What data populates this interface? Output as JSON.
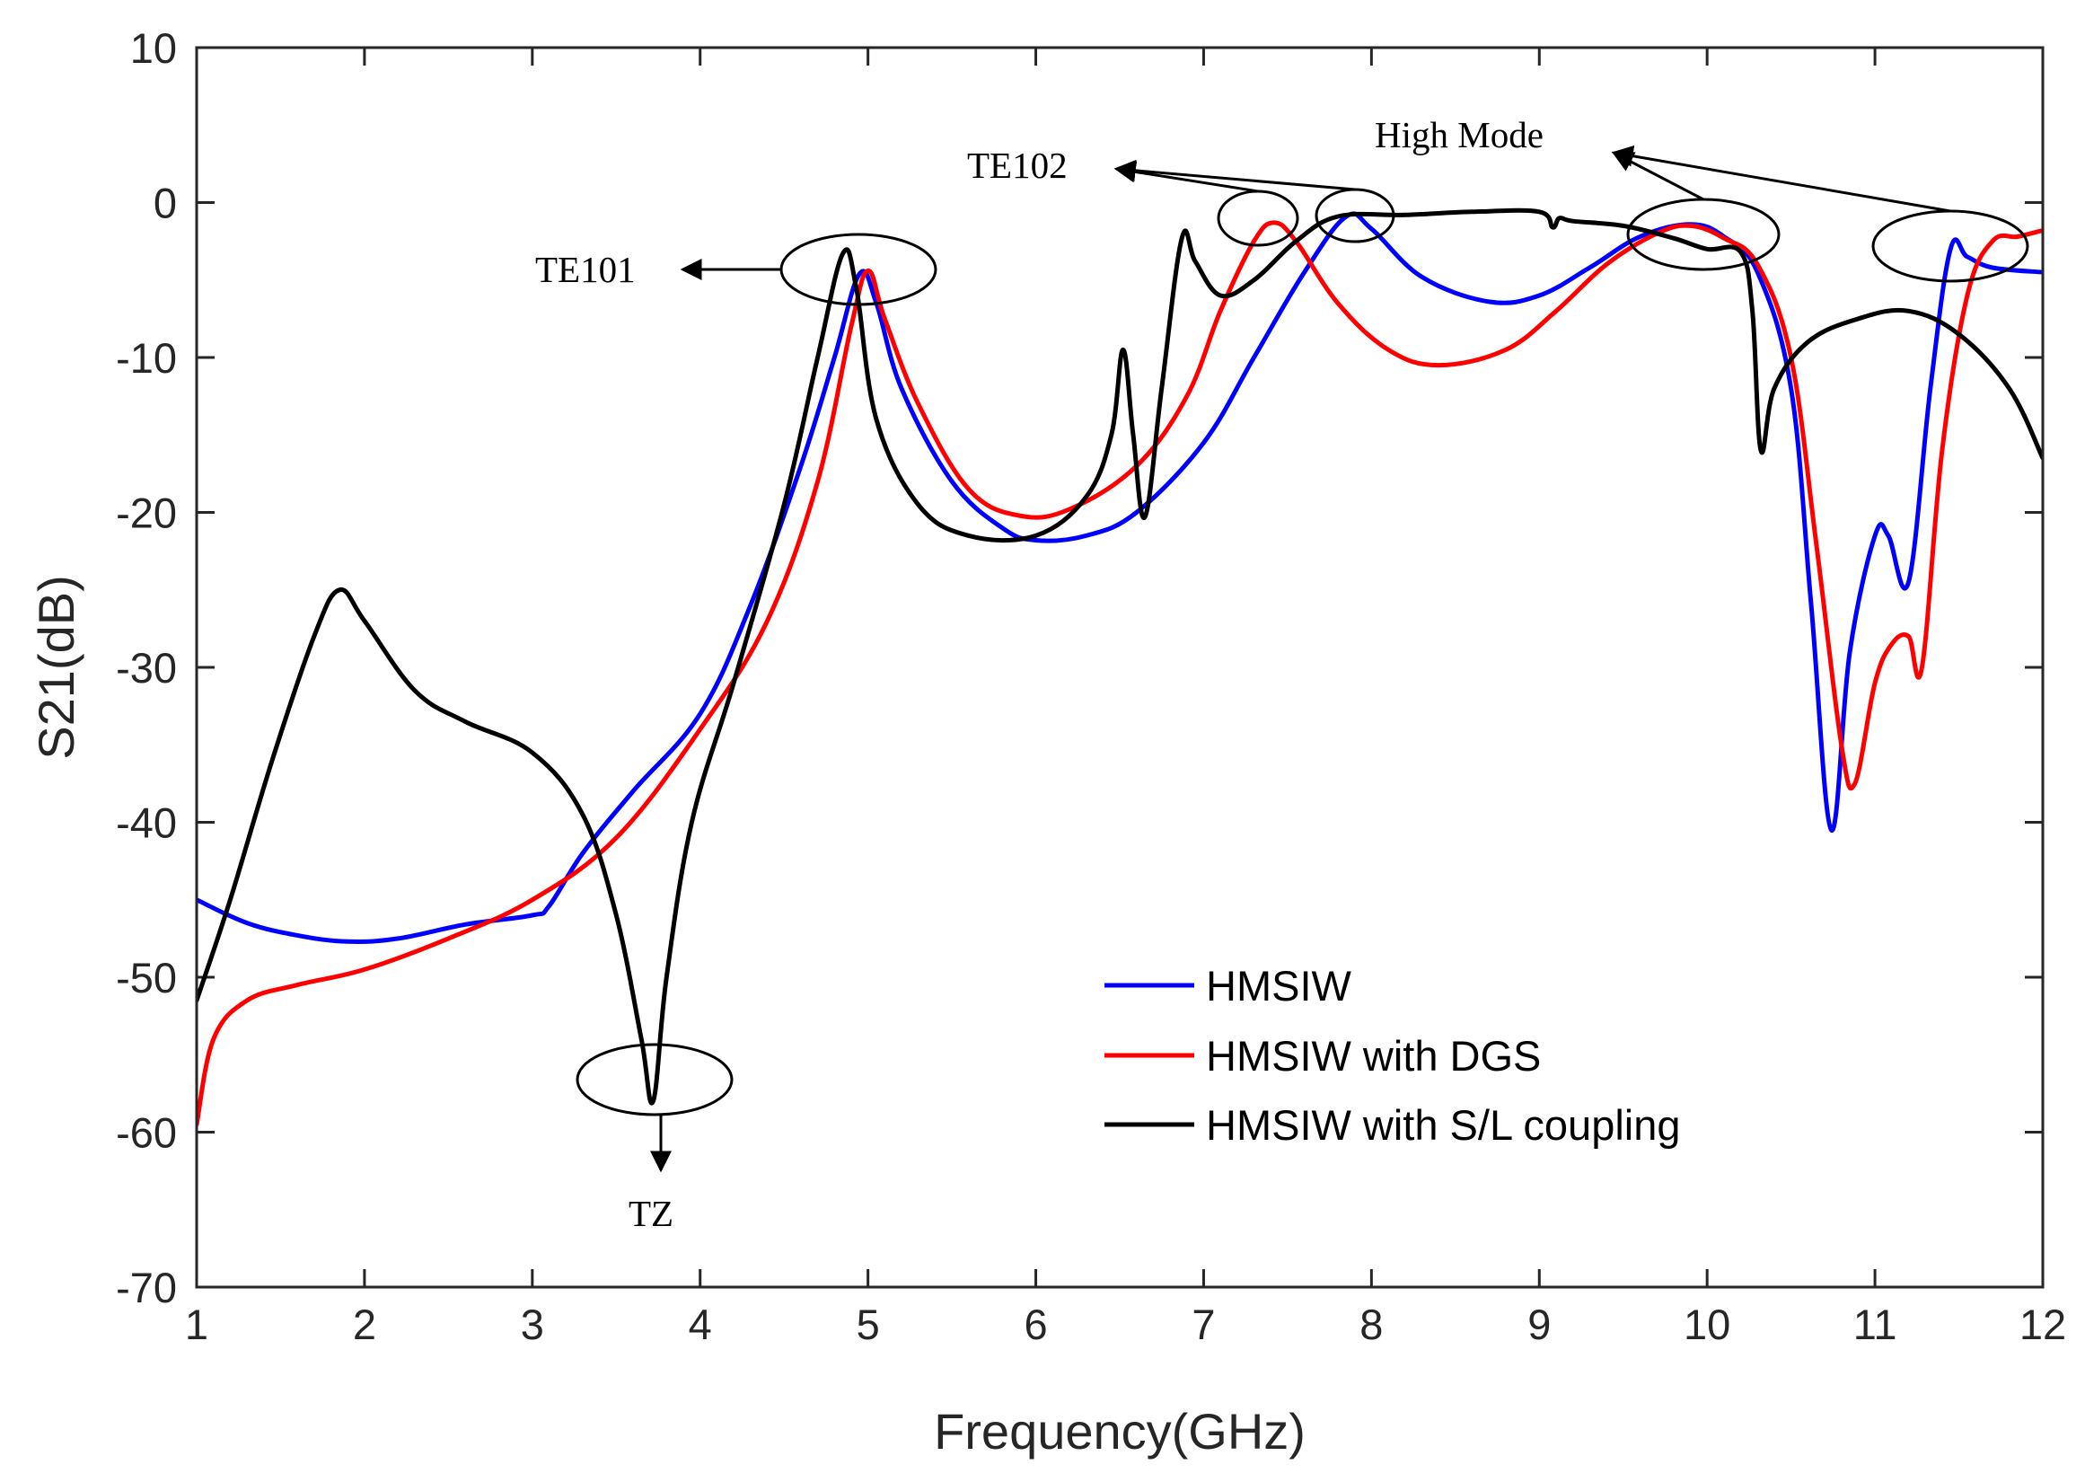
{
  "chart_data": {
    "type": "line",
    "title": "",
    "xlabel": "Frequency(GHz)",
    "ylabel": "S21(dB)",
    "xlim": [
      1,
      12
    ],
    "ylim": [
      -70,
      10
    ],
    "xticks": [
      1,
      2,
      3,
      4,
      5,
      6,
      7,
      8,
      9,
      10,
      11,
      12
    ],
    "yticks": [
      10,
      0,
      -10,
      -20,
      -30,
      -40,
      -50,
      -60,
      -70
    ],
    "grid": false,
    "legend_position": "lower-right",
    "series": [
      {
        "name": "HMSIW",
        "color": "#0000ff",
        "x": [
          1,
          1.3,
          1.6,
          1.9,
          2.2,
          2.6,
          3.0,
          3.1,
          3.3,
          3.6,
          4.0,
          4.3,
          4.6,
          4.8,
          4.95,
          5.05,
          5.2,
          5.5,
          5.8,
          6.0,
          6.3,
          6.6,
          7.0,
          7.3,
          7.6,
          7.85,
          8.0,
          8.3,
          8.7,
          9.0,
          9.3,
          9.6,
          9.9,
          10.1,
          10.3,
          10.5,
          10.62,
          10.74,
          10.85,
          11.0,
          11.08,
          11.2,
          11.33,
          11.45,
          11.55,
          11.7,
          12.0
        ],
        "y": [
          -45,
          -46.5,
          -47.3,
          -47.7,
          -47.5,
          -46.6,
          -46,
          -45.4,
          -42,
          -38,
          -33,
          -26,
          -17,
          -10,
          -4.6,
          -6.5,
          -12,
          -18,
          -21,
          -21.8,
          -21.5,
          -20,
          -15.5,
          -10,
          -4.5,
          -0.9,
          -1.7,
          -4.8,
          -6.4,
          -6,
          -4.2,
          -2.2,
          -1.4,
          -2.2,
          -4.5,
          -12,
          -26,
          -40.5,
          -29,
          -21.5,
          -21.5,
          -24.5,
          -12,
          -3,
          -3.5,
          -4.2,
          -4.5
        ]
      },
      {
        "name": "HMSIW with DGS",
        "color": "#ff0000",
        "x": [
          1,
          1.1,
          1.3,
          1.6,
          2.0,
          2.5,
          3.0,
          3.5,
          4.0,
          4.4,
          4.7,
          4.9,
          5.0,
          5.1,
          5.3,
          5.6,
          5.9,
          6.2,
          6.6,
          6.9,
          7.1,
          7.3,
          7.42,
          7.55,
          7.8,
          8.1,
          8.4,
          8.8,
          9.1,
          9.4,
          9.7,
          9.9,
          10.1,
          10.3,
          10.5,
          10.65,
          10.8,
          10.88,
          11.0,
          11.1,
          11.2,
          11.28,
          11.4,
          11.55,
          11.7,
          11.85,
          12.0
        ],
        "y": [
          -59.5,
          -54,
          -51.5,
          -50.5,
          -49.5,
          -47.5,
          -45,
          -41,
          -34,
          -27,
          -18,
          -8,
          -4.4,
          -7.5,
          -13,
          -18.5,
          -20.2,
          -19.8,
          -17,
          -12.5,
          -7,
          -2.5,
          -1.3,
          -2.5,
          -6.5,
          -9.5,
          -10.5,
          -9.5,
          -7,
          -4,
          -2,
          -1.5,
          -2.3,
          -4,
          -10,
          -22,
          -35,
          -37.5,
          -31,
          -28.5,
          -28,
          -30,
          -16,
          -6,
          -2.5,
          -2.2,
          -1.8
        ]
      },
      {
        "name": "HMSIW with S/L coupling",
        "color": "#000000",
        "x": [
          1,
          1.2,
          1.45,
          1.7,
          1.85,
          2.0,
          2.3,
          2.6,
          3.0,
          3.3,
          3.5,
          3.65,
          3.72,
          3.8,
          3.95,
          4.2,
          4.5,
          4.7,
          4.85,
          4.93,
          5.05,
          5.3,
          5.6,
          6.0,
          6.3,
          6.45,
          6.52,
          6.58,
          6.65,
          6.75,
          6.87,
          6.95,
          7.1,
          7.3,
          7.55,
          7.8,
          8.2,
          8.6,
          9.0,
          9.08,
          9.12,
          9.2,
          9.5,
          9.8,
          10.0,
          10.2,
          10.27,
          10.32,
          10.4,
          10.6,
          10.9,
          11.2,
          11.5,
          11.8,
          12.0
        ],
        "y": [
          -51.5,
          -45,
          -36,
          -28,
          -25,
          -27,
          -31.5,
          -33.5,
          -35.5,
          -39.5,
          -46,
          -54,
          -58,
          -50,
          -40,
          -31,
          -19.5,
          -10,
          -3.3,
          -5.5,
          -14,
          -19.5,
          -21.5,
          -21.5,
          -19,
          -15,
          -9.5,
          -15,
          -20.3,
          -12,
          -2.3,
          -3.8,
          -6,
          -5,
          -2.5,
          -0.9,
          -0.8,
          -0.6,
          -0.6,
          -1.6,
          -1.0,
          -1.2,
          -1.5,
          -2.3,
          -3,
          -3.2,
          -7,
          -16,
          -12,
          -9,
          -7.5,
          -7,
          -8.5,
          -12,
          -16.5
        ]
      }
    ],
    "annotations": [
      {
        "text": "TE101"
      },
      {
        "text": "TE102"
      },
      {
        "text": "High Mode"
      },
      {
        "text": "TZ"
      }
    ]
  }
}
